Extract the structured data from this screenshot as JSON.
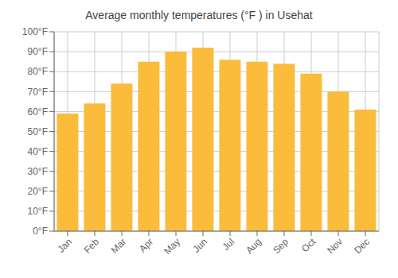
{
  "chart_data": {
    "type": "bar",
    "title": "Average monthly temperatures (°F ) in Usehat",
    "categories": [
      "Jan",
      "Feb",
      "Mar",
      "Apr",
      "May",
      "Jun",
      "Jul",
      "Aug",
      "Sep",
      "Oct",
      "Nov",
      "Dec"
    ],
    "values": [
      59,
      64,
      74,
      85,
      90,
      92,
      86,
      85,
      84,
      79,
      70,
      61
    ],
    "color": "#FBBC3C",
    "ylim": [
      0,
      100
    ],
    "yticks": [
      {
        "value": 0,
        "label": "0°F"
      },
      {
        "value": 10,
        "label": "10°F"
      },
      {
        "value": 20,
        "label": "20°F"
      },
      {
        "value": 30,
        "label": "30°F"
      },
      {
        "value": 40,
        "label": "40°F"
      },
      {
        "value": 50,
        "label": "50°F"
      },
      {
        "value": 60,
        "label": "60°F"
      },
      {
        "value": 70,
        "label": "70°F"
      },
      {
        "value": 80,
        "label": "80°F"
      },
      {
        "value": 90,
        "label": "90°F"
      },
      {
        "value": 100,
        "label": "100°F"
      }
    ],
    "grid": true
  }
}
